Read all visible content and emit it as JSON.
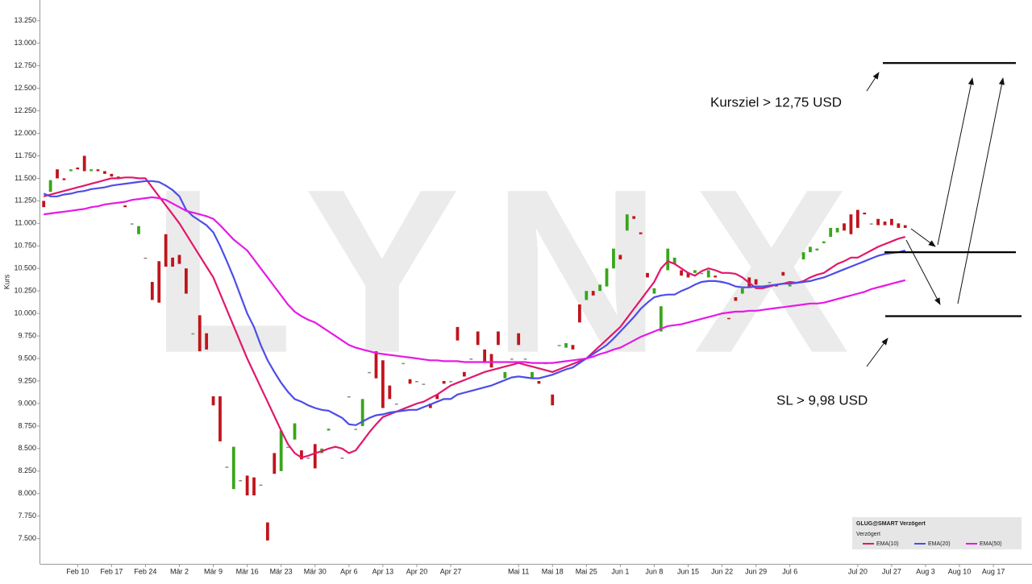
{
  "chart_data": {
    "type": "candlestick",
    "y_label": "Kurs",
    "watermark": "LYNX",
    "legend_title": "GLUG@SMART Verzögert",
    "legend_subtitle": "Verzögert",
    "annotations": [
      "Kursziel > 12,75 USD",
      "SL > 9,98 USD"
    ],
    "levels": [
      12.78,
      10.68,
      9.97
    ],
    "ylim": [
      7.22,
      13.48
    ],
    "yticks": [
      {
        "value": 7.5,
        "label": "7.500"
      },
      {
        "value": 7.75,
        "label": "7.750"
      },
      {
        "value": 8,
        "label": "8.000"
      },
      {
        "value": 8.25,
        "label": "8.250"
      },
      {
        "value": 8.5,
        "label": "8.500"
      },
      {
        "value": 8.75,
        "label": "8.750"
      },
      {
        "value": 9,
        "label": "9.000"
      },
      {
        "value": 9.25,
        "label": "9.250"
      },
      {
        "value": 9.5,
        "label": "9.500"
      },
      {
        "value": 9.75,
        "label": "9.750"
      },
      {
        "value": 10,
        "label": "10.000"
      },
      {
        "value": 10.25,
        "label": "10.250"
      },
      {
        "value": 10.5,
        "label": "10.500"
      },
      {
        "value": 10.75,
        "label": "10.750"
      },
      {
        "value": 11,
        "label": "11.000"
      },
      {
        "value": 11.25,
        "label": "11.250"
      },
      {
        "value": 11.5,
        "label": "11.500"
      },
      {
        "value": 11.75,
        "label": "11.750"
      },
      {
        "value": 12,
        "label": "12.000"
      },
      {
        "value": 12.25,
        "label": "12.250"
      },
      {
        "value": 12.5,
        "label": "12.500"
      },
      {
        "value": 12.75,
        "label": "12.750"
      },
      {
        "value": 13,
        "label": "13.000"
      },
      {
        "value": 13.25,
        "label": "13.250"
      }
    ],
    "up_color": "#3aa51b",
    "down_color": "#c0141c",
    "flat_color": "#888888",
    "categories": [
      null,
      null,
      null,
      null,
      null,
      "Feb 10",
      null,
      null,
      null,
      null,
      "Feb 17",
      null,
      null,
      null,
      null,
      "Feb 24",
      null,
      null,
      null,
      null,
      "Mär 2",
      null,
      null,
      null,
      null,
      "Mär 9",
      null,
      null,
      null,
      null,
      "Mär 16",
      null,
      null,
      null,
      null,
      "Mär 23",
      null,
      null,
      null,
      null,
      "Mär 30",
      null,
      null,
      null,
      null,
      "Apr 6",
      null,
      null,
      null,
      null,
      "Apr 13",
      null,
      null,
      null,
      null,
      "Apr 20",
      null,
      null,
      null,
      null,
      "Apr 27",
      null,
      null,
      null,
      null,
      null,
      null,
      null,
      null,
      null,
      "Mai 11",
      null,
      null,
      null,
      null,
      "Mai 18",
      null,
      null,
      null,
      null,
      "Mai 25",
      null,
      null,
      null,
      null,
      "Jun 1",
      null,
      null,
      null,
      null,
      "Jun 8",
      null,
      null,
      null,
      null,
      "Jun 15",
      null,
      null,
      null,
      null,
      "Jun 22",
      null,
      null,
      null,
      null,
      "Jun 29",
      null,
      null,
      null,
      null,
      "Jul 6",
      null,
      null,
      null,
      null,
      null,
      null,
      null,
      null,
      null,
      "Jul 20",
      null,
      null,
      null,
      null,
      "Jul 27",
      null,
      null,
      null,
      null,
      "Aug 3",
      null,
      null,
      null,
      null,
      "Aug 10",
      null,
      null,
      null,
      null,
      "Aug 17",
      null,
      null,
      null,
      null
    ],
    "candles": {
      "open": [
        11.25,
        11.35,
        11.6,
        11.5,
        11.58,
        11.62,
        11.75,
        11.58,
        11.6,
        11.58,
        11.55,
        11.52,
        11.2,
        11.0,
        10.88,
        10.62,
        10.35,
        10.58,
        10.88,
        10.62,
        10.65,
        10.5,
        9.78,
        9.98,
        9.78,
        9.08,
        9.08,
        8.3,
        8.05,
        8.15,
        8.2,
        8.18,
        8.1,
        7.68,
        8.45,
        8.25,
        8.52,
        8.6,
        8.48,
        8.4,
        8.55,
        8.45,
        8.7,
        8.52,
        8.4,
        9.08,
        8.72,
        8.75,
        9.35,
        9.58,
        9.48,
        9.2,
        9.0,
        9.45,
        9.27,
        9.25,
        9.22,
        9.0,
        9.1,
        9.25,
        9.25,
        9.85,
        9.35,
        9.5,
        9.8,
        9.6,
        9.55,
        9.8,
        9.28,
        9.5,
        9.78,
        9.5,
        9.28,
        9.25,
        9.45,
        9.1,
        9.65,
        9.62,
        9.65,
        10.1,
        10.15,
        10.25,
        10.25,
        10.3,
        10.5,
        10.65,
        10.92,
        11.08,
        10.9,
        10.45,
        10.22,
        9.8,
        10.48,
        10.55,
        10.48,
        10.45,
        10.45,
        10.45,
        10.4,
        10.42,
        10.35,
        9.95,
        10.18,
        10.22,
        10.4,
        10.38,
        10.3,
        10.35,
        10.32,
        10.46,
        10.3,
        10.35,
        10.6,
        10.68,
        10.7,
        10.78,
        10.85,
        10.9,
        11.0,
        11.1,
        11.15,
        11.12,
        11.0,
        11.05,
        11.02,
        11.05,
        11.0,
        10.98,
        null,
        null,
        null,
        null,
        null,
        null,
        null,
        null,
        null,
        null,
        null,
        null,
        null,
        null,
        null,
        null,
        null
      ],
      "close": [
        11.18,
        11.48,
        11.5,
        11.48,
        11.6,
        11.6,
        11.58,
        11.6,
        11.58,
        11.55,
        11.52,
        11.5,
        11.18,
        11.0,
        10.97,
        10.62,
        10.15,
        10.12,
        10.52,
        10.52,
        10.55,
        10.22,
        9.78,
        9.58,
        9.6,
        8.98,
        8.58,
        8.3,
        8.52,
        8.15,
        7.98,
        7.98,
        8.1,
        7.48,
        8.22,
        8.7,
        8.52,
        8.78,
        8.38,
        8.4,
        8.28,
        8.5,
        8.72,
        8.52,
        8.4,
        9.08,
        8.72,
        9.05,
        9.35,
        9.28,
        8.95,
        9.05,
        9.0,
        9.45,
        9.22,
        9.25,
        9.22,
        8.95,
        9.05,
        9.22,
        9.25,
        9.7,
        9.3,
        9.5,
        9.65,
        9.45,
        9.4,
        9.65,
        9.35,
        9.5,
        9.65,
        9.5,
        9.35,
        9.22,
        9.45,
        8.98,
        9.65,
        9.67,
        9.6,
        9.9,
        10.25,
        10.2,
        10.32,
        10.5,
        10.72,
        10.6,
        11.1,
        11.05,
        10.88,
        10.4,
        10.28,
        10.08,
        10.72,
        10.62,
        10.42,
        10.4,
        10.48,
        10.45,
        10.48,
        10.4,
        10.35,
        9.94,
        10.14,
        10.28,
        10.3,
        10.32,
        10.3,
        10.35,
        10.3,
        10.42,
        10.32,
        10.34,
        10.68,
        10.74,
        10.72,
        10.8,
        10.95,
        10.95,
        10.92,
        10.88,
        10.95,
        11.1,
        11.0,
        10.98,
        10.98,
        10.98,
        10.95,
        10.95,
        null,
        null,
        null,
        null,
        null,
        null,
        null,
        null,
        null,
        null,
        null,
        null,
        null,
        null,
        null,
        null,
        null
      ]
    },
    "series": [
      {
        "name": "EMA(10)",
        "color": "#e0186c",
        "values": [
          11.3,
          11.32,
          11.34,
          11.36,
          11.38,
          11.4,
          11.42,
          11.44,
          11.46,
          11.48,
          11.5,
          11.5,
          11.51,
          11.51,
          11.5,
          11.5,
          11.4,
          11.3,
          11.2,
          11.1,
          11.0,
          10.88,
          10.76,
          10.64,
          10.52,
          10.4,
          10.22,
          10.04,
          9.86,
          9.68,
          9.5,
          9.34,
          9.18,
          9.02,
          8.86,
          8.7,
          8.55,
          8.45,
          8.4,
          8.42,
          8.45,
          8.47,
          8.5,
          8.52,
          8.5,
          8.45,
          8.48,
          8.58,
          8.68,
          8.77,
          8.85,
          8.88,
          8.91,
          8.94,
          8.97,
          9.0,
          9.02,
          9.06,
          9.1,
          9.15,
          9.2,
          9.23,
          9.26,
          9.29,
          9.32,
          9.35,
          9.37,
          9.39,
          9.41,
          9.43,
          9.45,
          9.43,
          9.41,
          9.39,
          9.37,
          9.35,
          9.38,
          9.41,
          9.44,
          9.47,
          9.5,
          9.57,
          9.64,
          9.71,
          9.78,
          9.85,
          9.95,
          10.05,
          10.15,
          10.25,
          10.35,
          10.5,
          10.58,
          10.55,
          10.5,
          10.45,
          10.42,
          10.47,
          10.5,
          10.48,
          10.45,
          10.45,
          10.44,
          10.4,
          10.34,
          10.28,
          10.28,
          10.3,
          10.32,
          10.33,
          10.35,
          10.34,
          10.36,
          10.4,
          10.43,
          10.45,
          10.5,
          10.55,
          10.58,
          10.62,
          10.62,
          10.66,
          10.7,
          10.74,
          10.77,
          10.8,
          10.83,
          10.85,
          null,
          null,
          null,
          null,
          null,
          null,
          null,
          null,
          null,
          null,
          null,
          null,
          null,
          null,
          null,
          null,
          null
        ]
      },
      {
        "name": "EMA(20)",
        "color": "#4d4de8",
        "values": [
          11.33,
          11.3,
          11.3,
          11.32,
          11.33,
          11.35,
          11.36,
          11.38,
          11.39,
          11.4,
          11.42,
          11.43,
          11.44,
          11.45,
          11.46,
          11.47,
          11.47,
          11.46,
          11.42,
          11.37,
          11.3,
          11.15,
          11.08,
          11.03,
          10.98,
          10.9,
          10.75,
          10.58,
          10.4,
          10.2,
          10.0,
          9.85,
          9.65,
          9.48,
          9.35,
          9.23,
          9.13,
          9.05,
          9.02,
          8.98,
          8.95,
          8.93,
          8.92,
          8.88,
          8.84,
          8.77,
          8.76,
          8.8,
          8.84,
          8.87,
          8.88,
          8.9,
          8.91,
          8.92,
          8.93,
          8.93,
          8.96,
          8.99,
          9.02,
          9.05,
          9.05,
          9.1,
          9.12,
          9.14,
          9.16,
          9.18,
          9.2,
          9.23,
          9.26,
          9.29,
          9.3,
          9.29,
          9.28,
          9.28,
          9.3,
          9.32,
          9.35,
          9.38,
          9.4,
          9.45,
          9.5,
          9.55,
          9.6,
          9.65,
          9.72,
          9.8,
          9.88,
          9.96,
          10.05,
          10.12,
          10.18,
          10.2,
          10.21,
          10.21,
          10.25,
          10.28,
          10.32,
          10.35,
          10.36,
          10.36,
          10.35,
          10.33,
          10.3,
          10.29,
          10.29,
          10.3,
          10.3,
          10.31,
          10.32,
          10.33,
          10.33,
          10.34,
          10.35,
          10.36,
          10.38,
          10.4,
          10.43,
          10.46,
          10.49,
          10.52,
          10.55,
          10.58,
          10.61,
          10.64,
          10.66,
          10.67,
          10.68,
          10.7,
          null,
          null,
          null,
          null,
          null,
          null,
          null,
          null,
          null,
          null,
          null,
          null,
          null,
          null,
          null,
          null,
          null
        ]
      },
      {
        "name": "EMA(50)",
        "color": "#e619e6",
        "values": [
          11.1,
          11.11,
          11.12,
          11.13,
          11.14,
          11.15,
          11.16,
          11.18,
          11.19,
          11.21,
          11.22,
          11.23,
          11.24,
          11.26,
          11.27,
          11.28,
          11.29,
          11.28,
          11.26,
          11.22,
          11.18,
          11.14,
          11.12,
          11.1,
          11.08,
          11.05,
          10.98,
          10.9,
          10.82,
          10.76,
          10.7,
          10.6,
          10.5,
          10.4,
          10.3,
          10.2,
          10.1,
          10.02,
          9.97,
          9.93,
          9.9,
          9.85,
          9.8,
          9.75,
          9.7,
          9.65,
          9.62,
          9.6,
          9.58,
          9.56,
          9.55,
          9.54,
          9.53,
          9.52,
          9.51,
          9.5,
          9.49,
          9.48,
          9.48,
          9.47,
          9.47,
          9.47,
          9.46,
          9.46,
          9.46,
          9.46,
          9.46,
          9.46,
          9.46,
          9.46,
          9.46,
          9.46,
          9.45,
          9.45,
          9.45,
          9.45,
          9.46,
          9.47,
          9.48,
          9.49,
          9.5,
          9.52,
          9.55,
          9.57,
          9.6,
          9.62,
          9.66,
          9.7,
          9.74,
          9.77,
          9.8,
          9.83,
          9.86,
          9.87,
          9.88,
          9.9,
          9.92,
          9.94,
          9.96,
          9.98,
          10.0,
          10.01,
          10.02,
          10.02,
          10.03,
          10.03,
          10.04,
          10.05,
          10.06,
          10.07,
          10.08,
          10.09,
          10.1,
          10.11,
          10.11,
          10.12,
          10.14,
          10.16,
          10.18,
          10.2,
          10.22,
          10.24,
          10.27,
          10.29,
          10.31,
          10.33,
          10.35,
          10.37,
          null,
          null,
          null,
          null,
          null,
          null,
          null,
          null,
          null,
          null,
          null,
          null,
          null,
          null,
          null,
          null,
          null
        ]
      }
    ]
  }
}
